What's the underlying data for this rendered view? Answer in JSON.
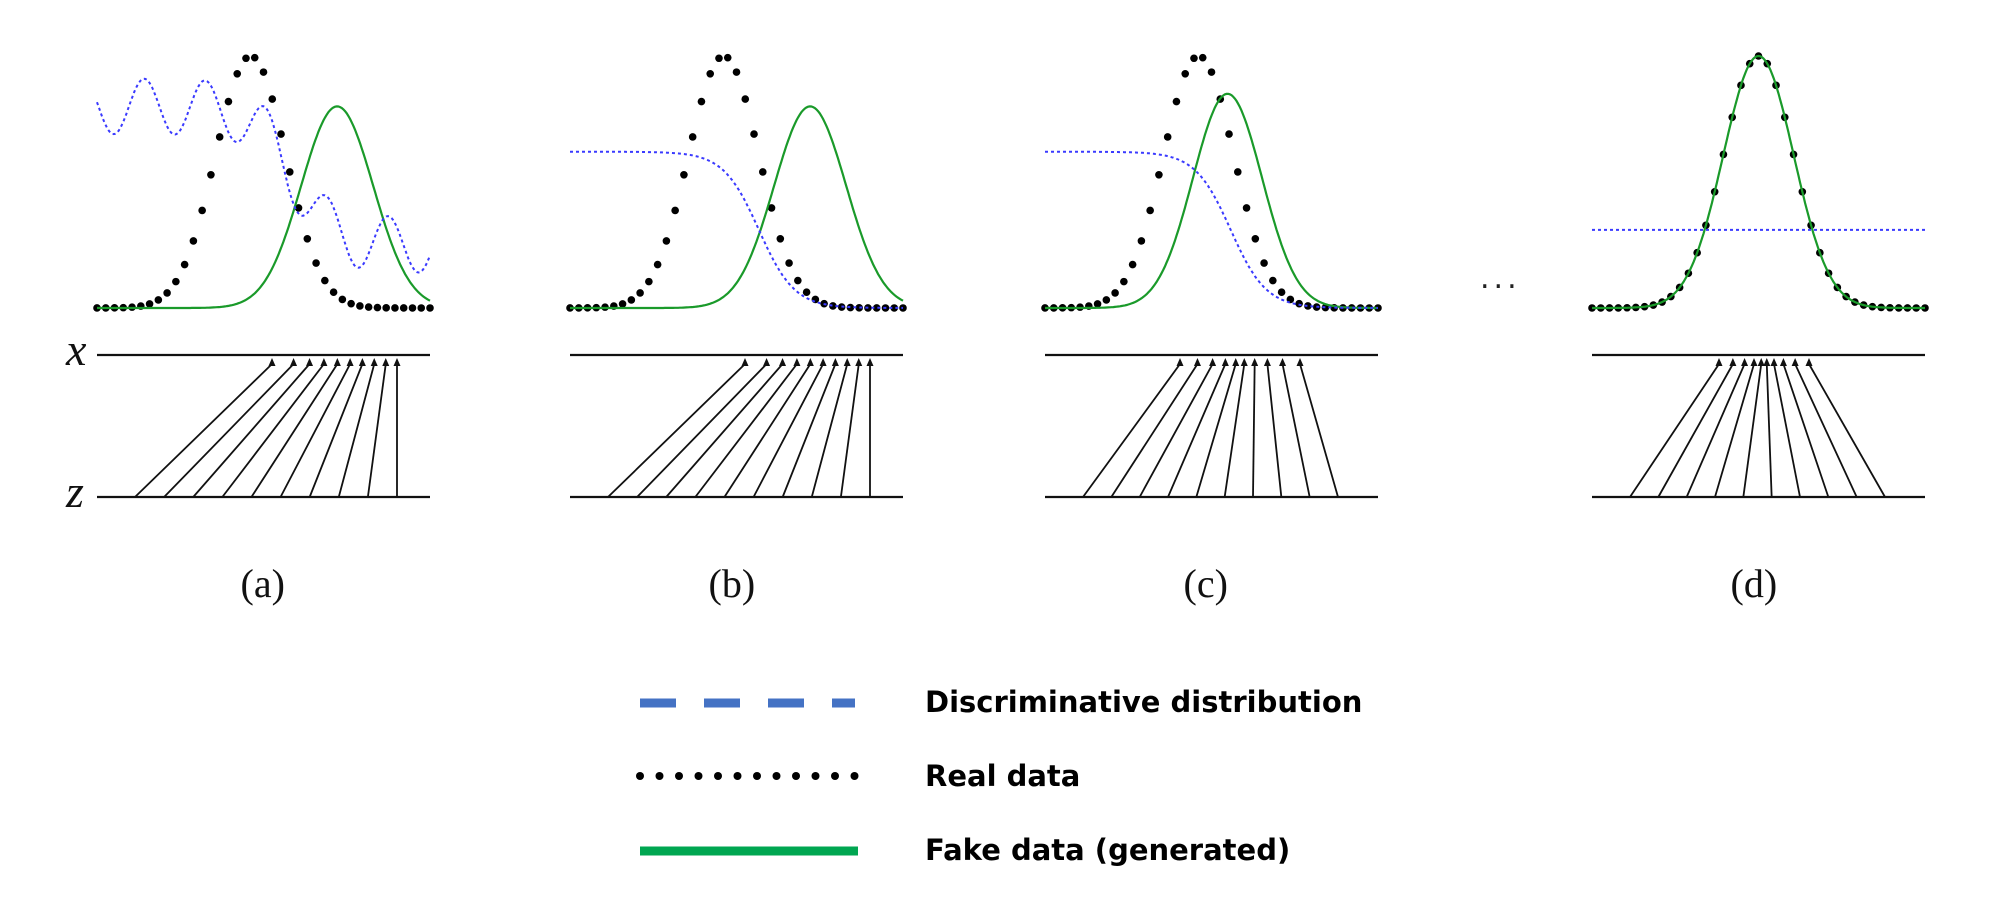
{
  "axis_letters": {
    "x": "x",
    "z": "z"
  },
  "panels": [
    {
      "label": "(a)",
      "discriminator": "wavy",
      "fake_shift": 1.35,
      "fake_sigma": 0.75,
      "mapping": "skewed"
    },
    {
      "label": "(b)",
      "discriminator": "sigmoid",
      "fake_shift": 1.35,
      "fake_sigma": 0.75,
      "mapping": "skewed"
    },
    {
      "label": "(c)",
      "discriminator": "sigmoid",
      "fake_shift": 0.45,
      "fake_sigma": 0.72,
      "mapping": "fan"
    },
    {
      "label": "(d)",
      "discriminator": "flat",
      "fake_shift": 0.0,
      "fake_sigma": 0.6,
      "mapping": "fan_narrow"
    }
  ],
  "ellipsis": "...",
  "legend": [
    {
      "name": "legend-discriminative",
      "label": "Discriminative distribution",
      "style": "dashed",
      "color": "#4472c4"
    },
    {
      "name": "legend-real",
      "label": "Real data",
      "style": "dotted",
      "color": "#000000"
    },
    {
      "name": "legend-fake",
      "label": "Fake data (generated)",
      "style": "solid",
      "color": "#00a651"
    }
  ],
  "colors": {
    "discriminator": "#3a3aff",
    "real": "#000000",
    "fake": "#1a9a2a",
    "axis": "#111111"
  }
}
